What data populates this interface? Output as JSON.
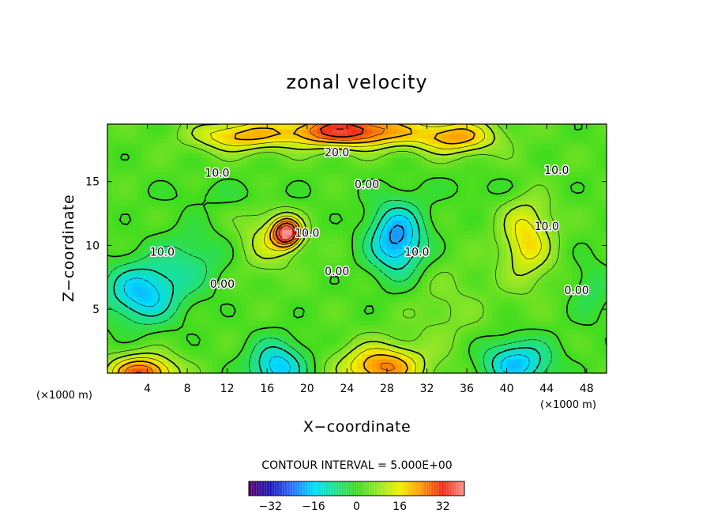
{
  "chart_data": {
    "type": "heatmap",
    "title": "zonal velocity",
    "xlabel": "X−coordinate",
    "ylabel": "Z−coordinate",
    "x_unit": "(×1000 m)",
    "y_unit": "(×1000 m)",
    "xlim": [
      0,
      50
    ],
    "ylim": [
      0,
      19.5
    ],
    "x_ticks": [
      4,
      8,
      12,
      16,
      20,
      24,
      28,
      32,
      36,
      40,
      44,
      48
    ],
    "y_ticks": [
      5,
      10,
      15
    ],
    "contour_interval_text": "CONTOUR INTERVAL = 5.000E+00",
    "contour_labels": [
      {
        "text": "20.0",
        "x": 23,
        "y": 17.3
      },
      {
        "text": "10.0",
        "x": 11,
        "y": 15.7
      },
      {
        "text": "10.0",
        "x": 45,
        "y": 15.9
      },
      {
        "text": "0.00",
        "x": 26,
        "y": 14.8
      },
      {
        "text": "10.0",
        "x": 20,
        "y": 11.0
      },
      {
        "text": "10.0",
        "x": 5.5,
        "y": 9.5
      },
      {
        "text": "10.0",
        "x": 44,
        "y": 11.5
      },
      {
        "text": "0.00",
        "x": 11.5,
        "y": 7.0
      },
      {
        "text": "0.00",
        "x": 23,
        "y": 8.0
      },
      {
        "text": "10.0",
        "x": 31,
        "y": 9.5
      },
      {
        "text": "0.00",
        "x": 47,
        "y": 6.5
      }
    ],
    "field_centers": [
      {
        "x": 24,
        "y": 19.0,
        "value": 32,
        "sx": 6.5,
        "sy": 1.3
      },
      {
        "x": 13,
        "y": 18.6,
        "value": 18,
        "sx": 4.5,
        "sy": 1.2
      },
      {
        "x": 35,
        "y": 18.5,
        "value": 20,
        "sx": 4.0,
        "sy": 1.3
      },
      {
        "x": 18,
        "y": 11.0,
        "value": 36,
        "sx": 1.4,
        "sy": 1.1
      },
      {
        "x": 16,
        "y": 10.5,
        "value": 10,
        "sx": 2.8,
        "sy": 2.4
      },
      {
        "x": 42,
        "y": 10.5,
        "value": 16,
        "sx": 2.5,
        "sy": 3.3
      },
      {
        "x": 29,
        "y": 10.5,
        "value": -24,
        "sx": 2.8,
        "sy": 2.8
      },
      {
        "x": 3.5,
        "y": 6.3,
        "value": -20,
        "sx": 3.8,
        "sy": 2.4
      },
      {
        "x": 8.5,
        "y": 9.0,
        "value": -8,
        "sx": 3.5,
        "sy": 2.5
      },
      {
        "x": 3.5,
        "y": 0.0,
        "value": 28,
        "sx": 3.3,
        "sy": 1.4
      },
      {
        "x": 27.5,
        "y": 0.5,
        "value": 24,
        "sx": 4.0,
        "sy": 1.7
      },
      {
        "x": 17,
        "y": 0.5,
        "value": -20,
        "sx": 2.8,
        "sy": 2.0
      },
      {
        "x": 41,
        "y": 0.8,
        "value": -20,
        "sx": 3.5,
        "sy": 1.8
      },
      {
        "x": 48.5,
        "y": 6.5,
        "value": -6,
        "sx": 2.0,
        "sy": 2.5
      },
      {
        "x": 12.5,
        "y": 14.0,
        "value": -3,
        "sx": 8.0,
        "sy": 1.0
      },
      {
        "x": 38,
        "y": 14.5,
        "value": -3,
        "sx": 6.0,
        "sy": 1.0
      },
      {
        "x": 34,
        "y": 5.0,
        "value": 4,
        "sx": 4.0,
        "sy": 4.0
      }
    ],
    "colorbar": {
      "min": -40,
      "max": 40,
      "tick_values": [
        -32,
        -16,
        0,
        16,
        32
      ],
      "tick_labels": [
        "−32",
        "−16",
        "0",
        "16",
        "32"
      ]
    }
  }
}
